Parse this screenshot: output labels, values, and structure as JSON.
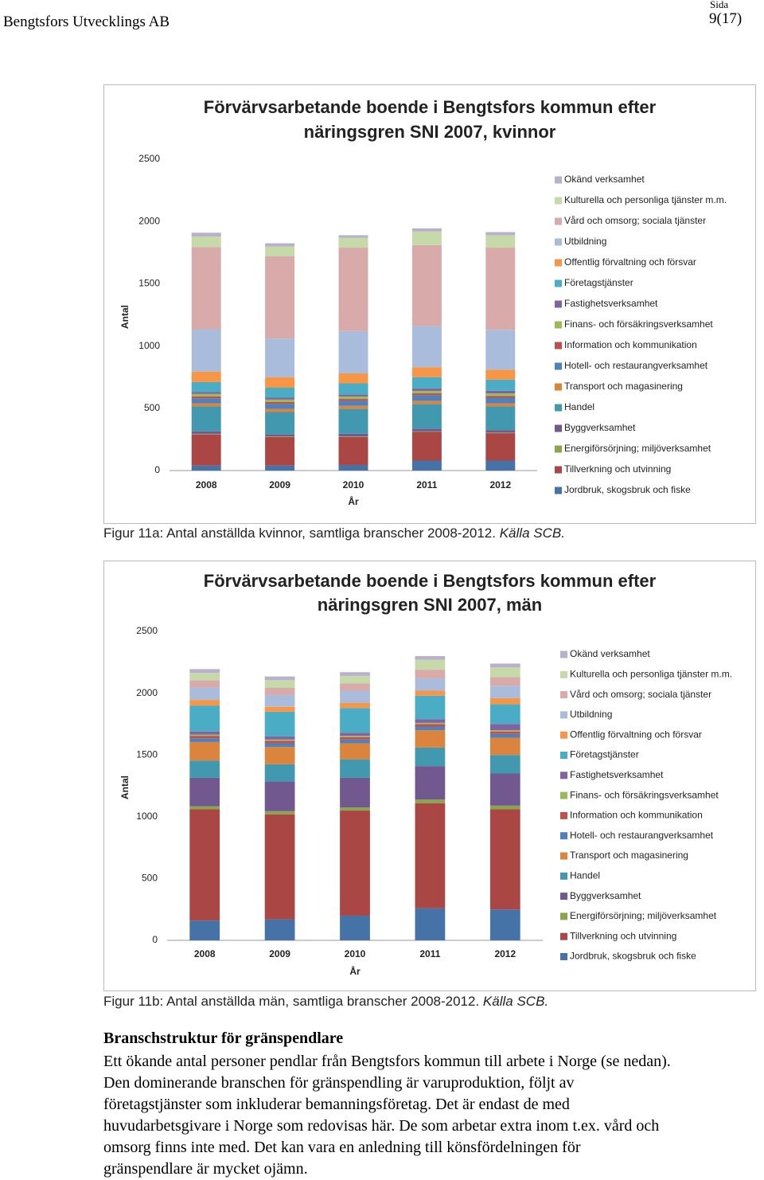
{
  "header": {
    "company": "Bengtsfors Utvecklings AB",
    "page_label": "Sida",
    "page_number": "9(17)"
  },
  "chart_data": [
    {
      "type": "bar",
      "stacked": true,
      "title": [
        "Förvärvsarbetande boende i Bengtsfors kommun efter",
        "näringsgren SNI 2007, kvinnor"
      ],
      "x_label": "År",
      "y_label": "Antal",
      "categories": [
        "2008",
        "2009",
        "2010",
        "2011",
        "2012"
      ],
      "ylim": [
        0,
        2500
      ],
      "yticks": [
        0,
        500,
        1000,
        1500,
        2000,
        2500
      ],
      "grid": false,
      "legend": "right",
      "series": [
        {
          "name": "Jordbruk, skogsbruk och fiske",
          "color": "#4572A7",
          "values": [
            40,
            40,
            45,
            80,
            80
          ]
        },
        {
          "name": "Tillverkning och utvinning",
          "color": "#AA4643",
          "values": [
            250,
            230,
            225,
            230,
            220
          ]
        },
        {
          "name": "Energiförsörjning; miljöverksamhet",
          "color": "#89A54E",
          "values": [
            5,
            5,
            5,
            5,
            5
          ]
        },
        {
          "name": "Byggverksamhet",
          "color": "#71588F",
          "values": [
            20,
            15,
            20,
            20,
            20
          ]
        },
        {
          "name": "Handel",
          "color": "#4198AF",
          "values": [
            200,
            180,
            200,
            200,
            190
          ]
        },
        {
          "name": "Transport och magasinering",
          "color": "#DB843D",
          "values": [
            25,
            25,
            25,
            25,
            25
          ]
        },
        {
          "name": "Hotell- och restaurangverksamhet",
          "color": "#4F81BD",
          "values": [
            40,
            40,
            40,
            45,
            45
          ]
        },
        {
          "name": "Information och kommunikation",
          "color": "#C0504D",
          "values": [
            15,
            15,
            15,
            15,
            15
          ]
        },
        {
          "name": "Finans- och försäkringsverksamhet",
          "color": "#9BBB59",
          "values": [
            20,
            20,
            20,
            20,
            20
          ]
        },
        {
          "name": "Fastighetsverksamhet",
          "color": "#8064A2",
          "values": [
            15,
            15,
            15,
            20,
            20
          ]
        },
        {
          "name": "Företagstjänster",
          "color": "#4BACC6",
          "values": [
            80,
            80,
            90,
            90,
            90
          ]
        },
        {
          "name": "Offentlig förvaltning och försvar",
          "color": "#F79646",
          "values": [
            85,
            85,
            80,
            80,
            80
          ]
        },
        {
          "name": "Utbildning",
          "color": "#A9BCDB",
          "values": [
            340,
            310,
            340,
            330,
            320
          ]
        },
        {
          "name": "Vård och omsorg; sociala tjänster",
          "color": "#D9AAAA",
          "values": [
            660,
            660,
            670,
            650,
            660
          ]
        },
        {
          "name": "Kulturella och personliga tjänster m.m.",
          "color": "#C6D9A8",
          "values": [
            85,
            80,
            80,
            110,
            100
          ]
        },
        {
          "name": "Okänd verksamhet",
          "color": "#B9B0CE",
          "values": [
            30,
            25,
            20,
            25,
            25
          ]
        }
      ]
    },
    {
      "type": "bar",
      "stacked": true,
      "title": [
        "Förvärvsarbetande boende i Bengtsfors kommun efter",
        "näringsgren SNI 2007, män"
      ],
      "x_label": "År",
      "y_label": "Antal",
      "categories": [
        "2008",
        "2009",
        "2010",
        "2011",
        "2012"
      ],
      "ylim": [
        0,
        2500
      ],
      "yticks": [
        0,
        500,
        1000,
        1500,
        2000,
        2500
      ],
      "grid": false,
      "legend": "right",
      "series": [
        {
          "name": "Jordbruk, skogsbruk och fiske",
          "color": "#4572A7",
          "values": [
            160,
            170,
            200,
            260,
            250
          ]
        },
        {
          "name": "Tillverkning och utvinning",
          "color": "#AA4643",
          "values": [
            900,
            850,
            850,
            850,
            810
          ]
        },
        {
          "name": "Energiförsörjning; miljöverksamhet",
          "color": "#89A54E",
          "values": [
            25,
            25,
            25,
            30,
            30
          ]
        },
        {
          "name": "Byggverksamhet",
          "color": "#71588F",
          "values": [
            230,
            240,
            240,
            270,
            260
          ]
        },
        {
          "name": "Handel",
          "color": "#4198AF",
          "values": [
            140,
            140,
            150,
            150,
            150
          ]
        },
        {
          "name": "Transport och magasinering",
          "color": "#DB843D",
          "values": [
            150,
            140,
            130,
            140,
            140
          ]
        },
        {
          "name": "Hotell- och restaurangverksamhet",
          "color": "#4F81BD",
          "values": [
            30,
            30,
            30,
            30,
            30
          ]
        },
        {
          "name": "Information och kommunikation",
          "color": "#C0504D",
          "values": [
            20,
            20,
            20,
            20,
            20
          ]
        },
        {
          "name": "Finans- och försäkringsverksamhet",
          "color": "#9BBB59",
          "values": [
            10,
            10,
            10,
            10,
            10
          ]
        },
        {
          "name": "Fastighetsverksamhet",
          "color": "#8064A2",
          "values": [
            25,
            25,
            25,
            30,
            50
          ]
        },
        {
          "name": "Företagstjänster",
          "color": "#4BACC6",
          "values": [
            210,
            200,
            200,
            190,
            160
          ]
        },
        {
          "name": "Offentlig förvaltning och försvar",
          "color": "#F79646",
          "values": [
            45,
            40,
            40,
            40,
            50
          ]
        },
        {
          "name": "Utbildning",
          "color": "#A9BCDB",
          "values": [
            100,
            95,
            100,
            100,
            100
          ]
        },
        {
          "name": "Vård och omsorg; sociala tjänster",
          "color": "#D9AAAA",
          "values": [
            60,
            60,
            60,
            70,
            70
          ]
        },
        {
          "name": "Kulturella och personliga tjänster m.m.",
          "color": "#C6D9A8",
          "values": [
            60,
            60,
            60,
            80,
            80
          ]
        },
        {
          "name": "Okänd verksamhet",
          "color": "#B9B0CE",
          "values": [
            30,
            30,
            30,
            30,
            30
          ]
        }
      ]
    }
  ],
  "captions": [
    {
      "text": "Figur 11a: Antal anställda kvinnor, samtliga branscher 2008-2012. ",
      "source": "Källa SCB."
    },
    {
      "text": "Figur 11b: Antal anställda män, samtliga branscher 2008-2012. ",
      "source": "Källa SCB."
    }
  ],
  "section": {
    "heading": "Branschstruktur för gränspendlare",
    "lines": [
      "Ett ökande antal personer pendlar från Bengtsfors kommun till arbete i Norge (se nedan).",
      "Den dominerande branschen för gränspendling är varuproduktion, följt av",
      "företagstjänster som inkluderar bemanningsföretag. Det är endast de med",
      "huvudarbetsgivare i Norge som redovisas här. De som arbetar extra inom t.ex. vård och",
      "omsorg finns inte med. Det kan vara en anledning till könsfördelningen för",
      "gränspendlare är mycket ojämn."
    ]
  }
}
